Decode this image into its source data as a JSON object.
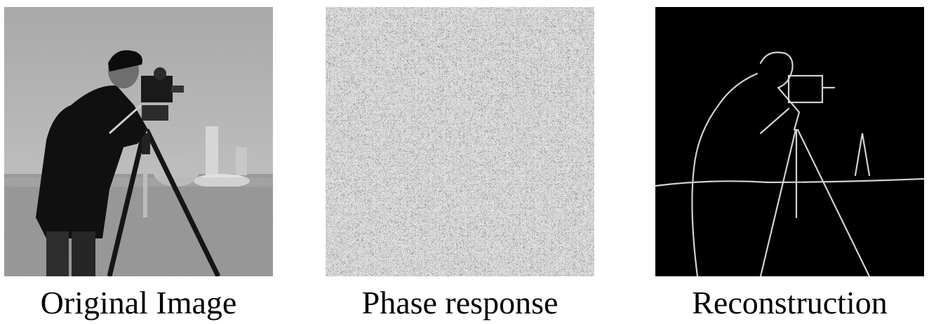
{
  "panels": [
    {
      "caption": "Original Image",
      "image": "cameraman-photo"
    },
    {
      "caption": "Phase response",
      "image": "phase-noise-texture"
    },
    {
      "caption": "Reconstruction",
      "image": "phase-only-reconstruction"
    }
  ],
  "colors": {
    "background": "#ffffff",
    "text": "#000000"
  }
}
